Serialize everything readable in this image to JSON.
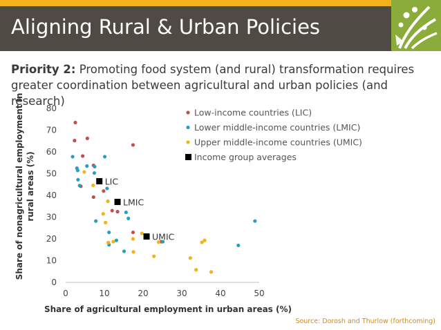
{
  "slide": {
    "title": "Aligning Rural & Urban Policies",
    "subtitle_bold": "Priority 2:",
    "subtitle_rest": " Promoting food system (and rural) transformation requires greater coordination between agricultural and urban policies (and research)",
    "source": "Source: Dorosh and Thurlow (forthcoming)",
    "colors": {
      "header": "#4f4a44",
      "accent": "#f2b31a",
      "logo_bg": "#8bab3a"
    }
  },
  "chart_data": {
    "type": "scatter",
    "xlabel": "Share of agricultural employment in urban areas (%)",
    "ylabel_line1": "Share of nonagricultural employment in",
    "ylabel_line2": "rural areas (%)",
    "xlim": [
      0,
      50
    ],
    "ylim": [
      0,
      80
    ],
    "xticks": [
      "0",
      "10",
      "20",
      "30",
      "40",
      "50"
    ],
    "yticks": [
      "0",
      "10",
      "20",
      "30",
      "40",
      "50",
      "60",
      "70",
      "80"
    ],
    "legend_position": "top-right",
    "series": [
      {
        "name": "Low-income countries (LIC)",
        "color": "#c0504d",
        "points": [
          [
            2.5,
            73.5
          ],
          [
            2.3,
            65.2
          ],
          [
            5.6,
            66.2
          ],
          [
            17.4,
            63.2
          ],
          [
            4.4,
            58.1
          ],
          [
            7.2,
            53.8
          ],
          [
            3.9,
            44.2
          ],
          [
            9.8,
            42
          ],
          [
            7.2,
            39.2
          ],
          [
            12,
            33
          ],
          [
            13.4,
            32.5
          ],
          [
            17.4,
            23
          ],
          [
            24.7,
            18.7
          ]
        ]
      },
      {
        "name": "Lower middle-income countries (LMIC)",
        "color": "#2b9cc2",
        "points": [
          [
            1.8,
            57.8
          ],
          [
            10.1,
            57.8
          ],
          [
            2.9,
            52.5
          ],
          [
            3.1,
            51.5
          ],
          [
            5.5,
            53.5
          ],
          [
            7.5,
            53.2
          ],
          [
            7.4,
            50.3
          ],
          [
            3.2,
            47.2
          ],
          [
            3.6,
            44.5
          ],
          [
            10.7,
            43.2
          ],
          [
            15.6,
            32.2
          ],
          [
            16.2,
            29.4
          ],
          [
            7.8,
            28.2
          ],
          [
            48.9,
            28.2
          ],
          [
            11.2,
            23
          ],
          [
            25.1,
            18.7
          ],
          [
            13.1,
            19.3
          ],
          [
            11.2,
            17.3
          ],
          [
            15.1,
            14.3
          ],
          [
            44.6,
            17
          ]
        ]
      },
      {
        "name": "Upper middle-income countries (UMIC)",
        "color": "#f2b31a",
        "points": [
          [
            4.8,
            50.8
          ],
          [
            7.1,
            44.6
          ],
          [
            10.9,
            37.3
          ],
          [
            9.7,
            31.5
          ],
          [
            10.3,
            27.5
          ],
          [
            19.7,
            22.5
          ],
          [
            24,
            18.5
          ],
          [
            11,
            18.3
          ],
          [
            12.3,
            18.7
          ],
          [
            17.4,
            20
          ],
          [
            17.5,
            14
          ],
          [
            22.8,
            12
          ],
          [
            35.2,
            18.4
          ],
          [
            35.9,
            19.3
          ],
          [
            32.2,
            11.2
          ],
          [
            33.7,
            5.8
          ],
          [
            37.6,
            4.8
          ]
        ]
      }
    ],
    "averages": {
      "name": "Income group averages",
      "color": "#000000",
      "points": [
        {
          "label": "LIC",
          "x": 8.7,
          "y": 46.5
        },
        {
          "label": "LMIC",
          "x": 13.4,
          "y": 37
        },
        {
          "label": "UMIC",
          "x": 20.9,
          "y": 21.1
        }
      ]
    }
  }
}
